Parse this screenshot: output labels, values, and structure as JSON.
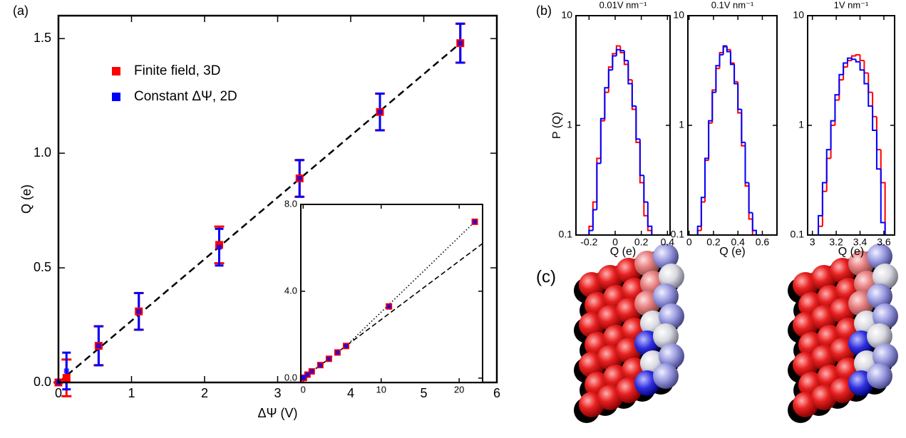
{
  "panel_labels": [
    "(a)",
    "(b)",
    "(c)"
  ],
  "chart_data": [
    {
      "type": "scatter",
      "xlabel": "ΔΨ (V)",
      "ylabel": "Q (e)",
      "xlim": [
        0,
        6
      ],
      "xticks": [
        0,
        1,
        2,
        3,
        4,
        5,
        6
      ],
      "ylim": [
        0,
        1.6
      ],
      "yticks": [
        {
          "value": 0,
          "label": "0.0"
        },
        0.5,
        {
          "value": 1,
          "label": "1.0"
        },
        1.5
      ],
      "x": [
        0,
        0.11,
        0.55,
        1.1,
        2.2,
        3.3,
        4.4,
        5.5
      ],
      "series": [
        {
          "name": "Finite field, 3D",
          "color": "#ff0000",
          "values": [
            0.0,
            0.02,
            0.16,
            0.31,
            0.6,
            0.89,
            1.18,
            1.48
          ],
          "errors": [
            0.0,
            0.08,
            0.085,
            0.08,
            0.08,
            0.08,
            0.08,
            0.085
          ]
        },
        {
          "name": "Constant ΔΨ, 2D",
          "color": "#0000ff",
          "values": [
            0.0,
            0.05,
            0.16,
            0.31,
            0.59,
            0.89,
            1.18,
            1.48
          ],
          "errors": [
            0.0,
            0.08,
            0.085,
            0.08,
            0.08,
            0.08,
            0.08,
            0.085
          ]
        }
      ],
      "lines": [
        {
          "style": "dashed",
          "x": [
            0,
            5.5
          ],
          "y": [
            0,
            1.48
          ]
        }
      ]
    },
    {
      "type": "scatter",
      "xlim": [
        -0.3,
        23
      ],
      "xticks": [
        0,
        10,
        20
      ],
      "ylim": [
        -0.2,
        8
      ],
      "yticks": [
        {
          "value": 0,
          "label": "0.0"
        },
        {
          "value": 4,
          "label": "4.0"
        },
        {
          "value": 8,
          "label": "8.0"
        }
      ],
      "x": [
        0,
        0.11,
        0.55,
        1.1,
        2.2,
        3.3,
        4.4,
        5.5,
        11,
        22
      ],
      "series": [
        {
          "color": "#ff0000",
          "values": [
            0.0,
            0.02,
            0.16,
            0.31,
            0.6,
            0.89,
            1.18,
            1.48,
            3.3,
            7.2
          ]
        },
        {
          "color": "#0000ff",
          "values": [
            0.0,
            0.05,
            0.16,
            0.31,
            0.59,
            0.89,
            1.18,
            1.48,
            3.3,
            7.2
          ]
        }
      ],
      "lines": [
        {
          "style": "dashed",
          "x": [
            0,
            23
          ],
          "y": [
            0,
            6.2
          ]
        },
        {
          "style": "dotted",
          "x": [
            5.5,
            22
          ],
          "y": [
            1.48,
            7.2
          ]
        }
      ]
    },
    {
      "type": "histogram",
      "title": "0.01V nm⁻¹",
      "xlabel": "Q (e)",
      "ylabel": "P (Q)",
      "log_y": true,
      "xlim": [
        -0.3,
        0.42
      ],
      "xticks": [
        -0.2,
        0,
        0.2,
        0.4
      ],
      "ylim": [
        0.1,
        10
      ],
      "yticks": [
        0.1,
        1,
        10
      ],
      "bins": [
        -0.2,
        -0.17,
        -0.14,
        -0.11,
        -0.08,
        -0.05,
        -0.02,
        0.01,
        0.04,
        0.07,
        0.1,
        0.13,
        0.16,
        0.19,
        0.22,
        0.25,
        0.28
      ],
      "series": [
        {
          "color": "#ff0000",
          "values": [
            0.12,
            0.2,
            0.5,
            1.1,
            2.0,
            3.4,
            4.5,
            5.3,
            4.6,
            3.6,
            2.6,
            1.4,
            0.7,
            0.3,
            0.15,
            0.11
          ]
        },
        {
          "color": "#0000ff",
          "values": [
            0.11,
            0.17,
            0.45,
            1.15,
            2.2,
            3.2,
            4.3,
            4.9,
            4.8,
            3.9,
            2.4,
            1.5,
            0.75,
            0.35,
            0.2,
            0.12
          ]
        }
      ]
    },
    {
      "type": "histogram",
      "title": "0.1V nm⁻¹",
      "xlabel": "Q (e)",
      "log_y": true,
      "xlim": [
        -0.01,
        0.72
      ],
      "xticks": [
        0,
        0.2,
        0.4,
        0.6
      ],
      "ylim": [
        0.1,
        10
      ],
      "yticks": [
        0.1,
        1,
        10
      ],
      "bins": [
        0.07,
        0.1,
        0.13,
        0.16,
        0.19,
        0.22,
        0.25,
        0.28,
        0.31,
        0.34,
        0.37,
        0.4,
        0.43,
        0.46,
        0.49,
        0.52,
        0.55
      ],
      "series": [
        {
          "color": "#ff0000",
          "values": [
            0.11,
            0.2,
            0.48,
            1.05,
            2.1,
            3.3,
            4.6,
            5.2,
            4.9,
            3.7,
            2.5,
            1.3,
            0.65,
            0.28,
            0.14,
            0.1
          ]
        },
        {
          "color": "#0000ff",
          "values": [
            0.12,
            0.22,
            0.5,
            1.1,
            2.0,
            3.5,
            4.4,
            5.3,
            4.7,
            3.6,
            2.4,
            1.4,
            0.7,
            0.3,
            0.16,
            0.11
          ]
        }
      ]
    },
    {
      "type": "histogram",
      "title": "1V nm⁻¹",
      "xlabel": "Q (e)",
      "log_y": true,
      "xlim": [
        2.96,
        3.69
      ],
      "xticks": [
        3,
        3.2,
        3.4,
        3.6
      ],
      "ylim": [
        0.1,
        10
      ],
      "yticks": [
        0.1,
        1,
        10
      ],
      "bins": [
        3.05,
        3.085,
        3.12,
        3.155,
        3.19,
        3.225,
        3.26,
        3.295,
        3.33,
        3.365,
        3.4,
        3.435,
        3.47,
        3.505,
        3.54,
        3.575,
        3.61
      ],
      "series": [
        {
          "color": "#ff0000",
          "values": [
            0.12,
            0.25,
            0.5,
            1.0,
            1.7,
            2.6,
            3.4,
            3.9,
            4.3,
            4.4,
            3.9,
            3.0,
            2.0,
            1.2,
            0.6,
            0.3
          ]
        },
        {
          "color": "#0000ff",
          "values": [
            0.15,
            0.3,
            0.6,
            1.1,
            1.9,
            2.9,
            3.7,
            4.1,
            4.0,
            3.8,
            3.2,
            2.4,
            1.5,
            0.9,
            0.4,
            0.13
          ]
        }
      ]
    }
  ]
}
